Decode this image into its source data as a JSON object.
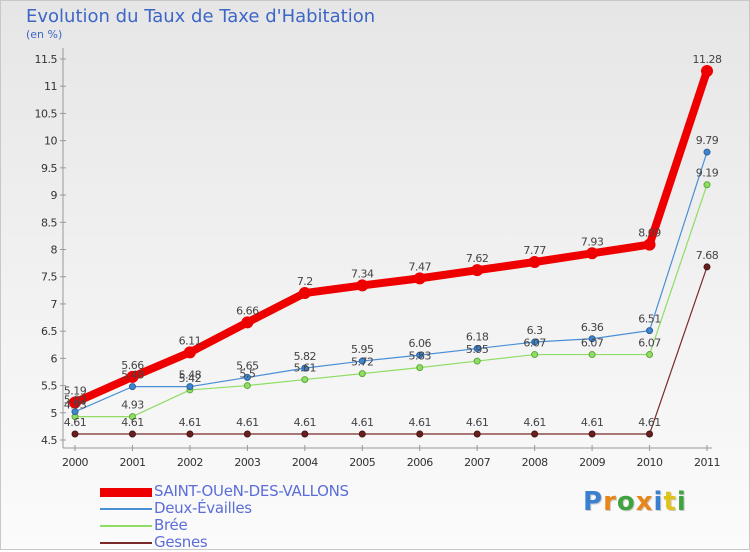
{
  "header": {
    "title": "Evolution du Taux de Taxe d'Habitation",
    "subtitle": "(en %)"
  },
  "logo": {
    "letters": [
      "P",
      "r",
      "o",
      "x",
      "i",
      "t",
      "i"
    ],
    "colors": [
      "#3b7fd0",
      "#e8861a",
      "#3fa33f",
      "#e8861a",
      "#3b7fd0",
      "#e0c21a",
      "#3fa33f"
    ]
  },
  "chart_data": {
    "type": "line",
    "title": "Evolution du Taux de Taxe d'Habitation",
    "ylabel": "(en %)",
    "xlabel": "",
    "ylim": [
      4.5,
      11.5
    ],
    "yticks": [
      "4.5",
      "5",
      "5.5",
      "6",
      "6.5",
      "7",
      "7.5",
      "8",
      "8.5",
      "9",
      "9.5",
      "10",
      "10.5",
      "11",
      "11.5"
    ],
    "x": [
      "2000",
      "2001",
      "2002",
      "2003",
      "2004",
      "2005",
      "2006",
      "2007",
      "2008",
      "2009",
      "2010",
      "2011"
    ],
    "grid": false,
    "legend_position": "bottom-left",
    "series": [
      {
        "name": "SAINT-OUeN-DES-VALLONS",
        "color": "#ee0000",
        "values": [
          5.19,
          5.66,
          6.11,
          6.66,
          7.2,
          7.34,
          7.47,
          7.62,
          7.77,
          7.93,
          8.09,
          11.28
        ],
        "labels": [
          "5.19",
          "5.66",
          "6.11",
          "6.66",
          "7.2",
          "7.34",
          "7.47",
          "7.62",
          "7.77",
          "7.93",
          "8.09",
          "11.28"
        ]
      },
      {
        "name": "Deux-Évailles",
        "color": "#4a8fd6",
        "values": [
          5.02,
          5.48,
          5.48,
          5.65,
          5.82,
          5.95,
          6.06,
          6.18,
          6.3,
          6.36,
          6.51,
          9.79
        ],
        "labels": [
          "5.02",
          "5.48",
          "5.48",
          "5.65",
          "5.82",
          "5.95",
          "6.06",
          "6.18",
          "6.3",
          "6.36",
          "6.51",
          "9.79"
        ]
      },
      {
        "name": "Brée",
        "color": "#8fdd63",
        "values": [
          4.93,
          4.93,
          5.42,
          5.5,
          5.61,
          5.72,
          5.83,
          5.95,
          6.07,
          6.07,
          6.07,
          9.19
        ],
        "labels": [
          "4.93",
          "4.93",
          "5.42",
          "5.5",
          "5.61",
          "5.72",
          "5.83",
          "5.95",
          "6.07",
          "6.07",
          "6.07",
          "9.19"
        ]
      },
      {
        "name": "Gesnes",
        "color": "#7a2a2a",
        "values": [
          4.61,
          4.61,
          4.61,
          4.61,
          4.61,
          4.61,
          4.61,
          4.61,
          4.61,
          4.61,
          4.61,
          7.68
        ],
        "labels": [
          "4.61",
          "4.61",
          "4.61",
          "4.61",
          "4.61",
          "4.61",
          "4.61",
          "4.61",
          "4.61",
          "4.61",
          "4.61",
          "7.68"
        ]
      }
    ]
  }
}
